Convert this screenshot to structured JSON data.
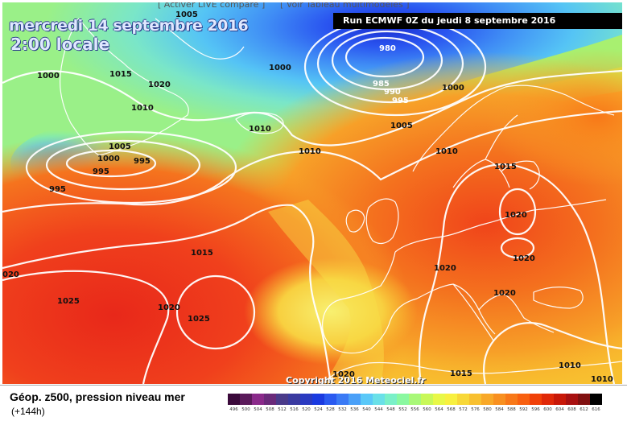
{
  "top_links": {
    "left": "[ Activer LIVE compare ]",
    "right": "[ Voir Tableau multimodèles ]"
  },
  "map": {
    "date_line": "mercredi 14 septembre 2016",
    "time_line": "2:00 locale",
    "run_label": "Run ECMWF 0Z du jeudi 8 septembre 2016",
    "copyright": "Copyright 2016 Meteociel.fr",
    "isobars": [
      {
        "text": "1005",
        "col": "dark"
      },
      {
        "text": "1000",
        "col": "dark"
      },
      {
        "text": "1015",
        "col": "dark"
      },
      {
        "text": "1020",
        "col": "dark"
      },
      {
        "text": "1010",
        "col": "dark"
      },
      {
        "text": "1000",
        "col": "dark"
      },
      {
        "text": "980",
        "col": "white"
      },
      {
        "text": "985",
        "col": "white"
      },
      {
        "text": "990",
        "col": "white"
      },
      {
        "text": "995",
        "col": "white"
      },
      {
        "text": "1000",
        "col": "dark"
      },
      {
        "text": "1010",
        "col": "dark"
      },
      {
        "text": "1005",
        "col": "dark"
      },
      {
        "text": "1000",
        "col": "dark"
      },
      {
        "text": "995",
        "col": "dark"
      },
      {
        "text": "995",
        "col": "dark"
      },
      {
        "text": "995",
        "col": "dark"
      },
      {
        "text": "1005",
        "col": "dark"
      },
      {
        "text": "1010",
        "col": "dark"
      },
      {
        "text": "1010",
        "col": "dark"
      },
      {
        "text": "1015",
        "col": "dark"
      },
      {
        "text": "1020",
        "col": "dark"
      },
      {
        "text": "1015",
        "col": "dark"
      },
      {
        "text": "1020",
        "col": "dark"
      },
      {
        "text": "1020",
        "col": "dark"
      },
      {
        "text": "020",
        "col": "dark"
      },
      {
        "text": "1025",
        "col": "dark"
      },
      {
        "text": "1020",
        "col": "dark"
      },
      {
        "text": "1025",
        "col": "dark"
      },
      {
        "text": "1020",
        "col": "dark"
      },
      {
        "text": "1020",
        "col": "dark"
      },
      {
        "text": "1010",
        "col": "dark"
      },
      {
        "text": "1015",
        "col": "dark"
      },
      {
        "text": "1010",
        "col": "dark"
      }
    ]
  },
  "caption": {
    "title": "Géop. z500, pression niveau mer",
    "subtitle": "(+144h)"
  },
  "legend": {
    "labels": [
      "496",
      "500",
      "504",
      "508",
      "512",
      "516",
      "520",
      "524",
      "528",
      "532",
      "536",
      "540",
      "544",
      "548",
      "552",
      "556",
      "560",
      "564",
      "568",
      "572",
      "576",
      "580",
      "584",
      "588",
      "592",
      "596",
      "600",
      "604",
      "608",
      "612",
      "616"
    ],
    "colors": [
      "#3b0a3b",
      "#5a1a5a",
      "#8a2a8a",
      "#6a2a7a",
      "#4a3a8a",
      "#3a3aa0",
      "#2a3ac0",
      "#1a3ae0",
      "#2a5af0",
      "#3a7af5",
      "#4aa0f8",
      "#5ac8f8",
      "#6ae0e8",
      "#7af0c8",
      "#8af8a0",
      "#a8f878",
      "#c8f858",
      "#e8f848",
      "#f8f040",
      "#f8d838",
      "#f8c030",
      "#f8a828",
      "#f89020",
      "#f87818",
      "#f86010",
      "#f04008",
      "#e02808",
      "#c81808",
      "#a81010",
      "#801010",
      "#000000"
    ]
  }
}
